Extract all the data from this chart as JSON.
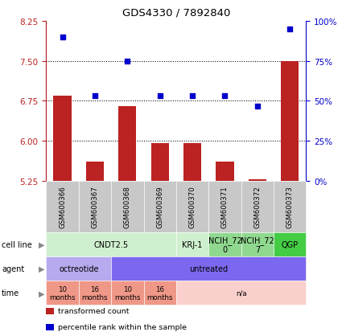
{
  "title": "GDS4330 / 7892840",
  "samples": [
    "GSM600366",
    "GSM600367",
    "GSM600368",
    "GSM600369",
    "GSM600370",
    "GSM600371",
    "GSM600372",
    "GSM600373"
  ],
  "bar_values": [
    6.85,
    5.6,
    6.65,
    5.95,
    5.95,
    5.6,
    5.28,
    7.5
  ],
  "scatter_values": [
    7.95,
    6.85,
    7.5,
    6.85,
    6.85,
    6.85,
    6.65,
    8.1
  ],
  "ylim_left": [
    5.25,
    8.25
  ],
  "ylim_right": [
    0,
    100
  ],
  "yticks_left": [
    5.25,
    6.0,
    6.75,
    7.5,
    8.25
  ],
  "yticks_right": [
    0,
    25,
    50,
    75,
    100
  ],
  "ytick_labels_right": [
    "0%",
    "25%",
    "50%",
    "75%",
    "100%"
  ],
  "hlines": [
    6.0,
    6.75,
    7.5
  ],
  "bar_color": "#bb2222",
  "scatter_color": "#0000cc",
  "bar_baseline": 5.25,
  "cell_line_groups": [
    {
      "label": "CNDT2.5",
      "start": 0,
      "end": 3,
      "color": "#cff0cf"
    },
    {
      "label": "KRJ-1",
      "start": 4,
      "end": 4,
      "color": "#cff0cf"
    },
    {
      "label": "NCIH_72\n0",
      "start": 5,
      "end": 5,
      "color": "#90d890"
    },
    {
      "label": "NCIH_72\n7",
      "start": 6,
      "end": 6,
      "color": "#90d890"
    },
    {
      "label": "QGP",
      "start": 7,
      "end": 7,
      "color": "#44cc44"
    }
  ],
  "agent_groups": [
    {
      "label": "octreotide",
      "start": 0,
      "end": 1,
      "color": "#b8aaee"
    },
    {
      "label": "untreated",
      "start": 2,
      "end": 7,
      "color": "#7b68ee"
    }
  ],
  "time_groups": [
    {
      "label": "10\nmonths",
      "start": 0,
      "end": 0,
      "color": "#f09888"
    },
    {
      "label": "16\nmonths",
      "start": 1,
      "end": 1,
      "color": "#f09888"
    },
    {
      "label": "10\nmonths",
      "start": 2,
      "end": 2,
      "color": "#f09888"
    },
    {
      "label": "16\nmonths",
      "start": 3,
      "end": 3,
      "color": "#f09888"
    },
    {
      "label": "n/a",
      "start": 4,
      "end": 7,
      "color": "#fad0cc"
    }
  ],
  "legend_items": [
    {
      "label": "transformed count",
      "color": "#bb2222"
    },
    {
      "label": "percentile rank within the sample",
      "color": "#0000cc"
    }
  ],
  "sample_box_color": "#c8c8c8",
  "bg_color": "#ffffff"
}
